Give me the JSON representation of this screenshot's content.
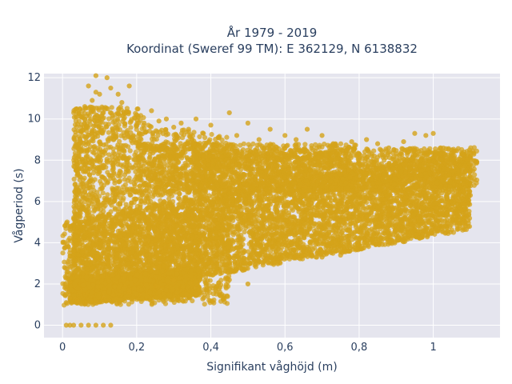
{
  "chart_data": {
    "type": "scatter",
    "title_line1": "År 1979 - 2019",
    "title_line2": "Koordinat (Sweref 99 TM): E 362129, N 6138832",
    "xlabel": "Signifikant våghöjd (m)",
    "ylabel": "Vågperiod (s)",
    "xlim": [
      -0.05,
      1.18
    ],
    "ylim": [
      -0.6,
      12.2
    ],
    "x_ticks": [
      {
        "value": 0,
        "label": "0"
      },
      {
        "value": 0.2,
        "label": "0,2"
      },
      {
        "value": 0.4,
        "label": "0,4"
      },
      {
        "value": 0.6,
        "label": "0,6"
      },
      {
        "value": 0.8,
        "label": "0,8"
      },
      {
        "value": 1.0,
        "label": "1"
      }
    ],
    "y_ticks": [
      {
        "value": 0,
        "label": "0"
      },
      {
        "value": 2,
        "label": "2"
      },
      {
        "value": 4,
        "label": "4"
      },
      {
        "value": 6,
        "label": "6"
      },
      {
        "value": 8,
        "label": "8"
      },
      {
        "value": 10,
        "label": "10"
      },
      {
        "value": 12,
        "label": "12"
      }
    ],
    "grid": true,
    "marker_color": "#D4A319",
    "background_color": "#E5E5EE",
    "points": [
      [
        0.01,
        0.0
      ],
      [
        0.02,
        0.0
      ],
      [
        0.03,
        0.0
      ],
      [
        0.05,
        0.0
      ],
      [
        0.07,
        0.0
      ],
      [
        0.09,
        0.0
      ],
      [
        0.11,
        0.0
      ],
      [
        0.13,
        0.0
      ],
      [
        0.01,
        1.1
      ],
      [
        0.01,
        1.5
      ],
      [
        0.02,
        2.1
      ],
      [
        0.01,
        3.8
      ],
      [
        0.03,
        3.6
      ],
      [
        0.02,
        1.3
      ],
      [
        0.04,
        1.2
      ],
      [
        0.05,
        9.4
      ],
      [
        0.06,
        10.6
      ],
      [
        0.08,
        10.9
      ],
      [
        0.09,
        11.3
      ],
      [
        0.07,
        11.6
      ],
      [
        0.09,
        12.1
      ],
      [
        0.1,
        11.2
      ],
      [
        0.11,
        10.3
      ],
      [
        0.05,
        10.1
      ],
      [
        0.12,
        12.0
      ],
      [
        0.13,
        11.5
      ],
      [
        0.15,
        11.2
      ],
      [
        0.16,
        10.8
      ],
      [
        0.18,
        11.6
      ],
      [
        0.2,
        10.2
      ],
      [
        0.22,
        9.8
      ],
      [
        0.24,
        10.4
      ],
      [
        0.26,
        9.9
      ],
      [
        0.28,
        10.0
      ],
      [
        0.3,
        9.6
      ],
      [
        0.32,
        9.8
      ],
      [
        0.34,
        9.5
      ],
      [
        0.36,
        10.0
      ],
      [
        0.38,
        9.3
      ],
      [
        0.4,
        9.7
      ],
      [
        0.42,
        9.1
      ],
      [
        0.45,
        10.3
      ],
      [
        0.47,
        9.2
      ],
      [
        0.5,
        9.8
      ],
      [
        0.53,
        9.0
      ],
      [
        0.56,
        9.5
      ],
      [
        0.6,
        9.2
      ],
      [
        0.63,
        9.0
      ],
      [
        0.66,
        9.5
      ],
      [
        0.7,
        9.2
      ],
      [
        0.73,
        8.8
      ],
      [
        0.78,
        8.9
      ],
      [
        0.82,
        9.0
      ],
      [
        0.85,
        8.8
      ],
      [
        0.88,
        8.6
      ],
      [
        0.92,
        8.9
      ],
      [
        0.95,
        9.3
      ],
      [
        0.98,
        9.2
      ],
      [
        1.0,
        9.3
      ],
      [
        1.02,
        8.6
      ],
      [
        1.05,
        8.5
      ],
      [
        1.08,
        8.3
      ],
      [
        1.1,
        8.2
      ],
      [
        0.18,
        1.6
      ],
      [
        0.25,
        1.9
      ],
      [
        0.3,
        2.2
      ],
      [
        0.38,
        2.5
      ],
      [
        0.45,
        2.2
      ],
      [
        0.5,
        2.0
      ],
      [
        0.55,
        3.2
      ],
      [
        0.6,
        3.5
      ],
      [
        0.65,
        3.8
      ],
      [
        0.7,
        3.3
      ],
      [
        0.75,
        3.4
      ],
      [
        0.8,
        3.9
      ],
      [
        0.85,
        4.5
      ],
      [
        0.9,
        4.6
      ],
      [
        0.95,
        5.0
      ],
      [
        1.0,
        5.3
      ],
      [
        1.05,
        5.6
      ],
      [
        1.08,
        5.9
      ],
      [
        1.1,
        6.3
      ]
    ]
  }
}
